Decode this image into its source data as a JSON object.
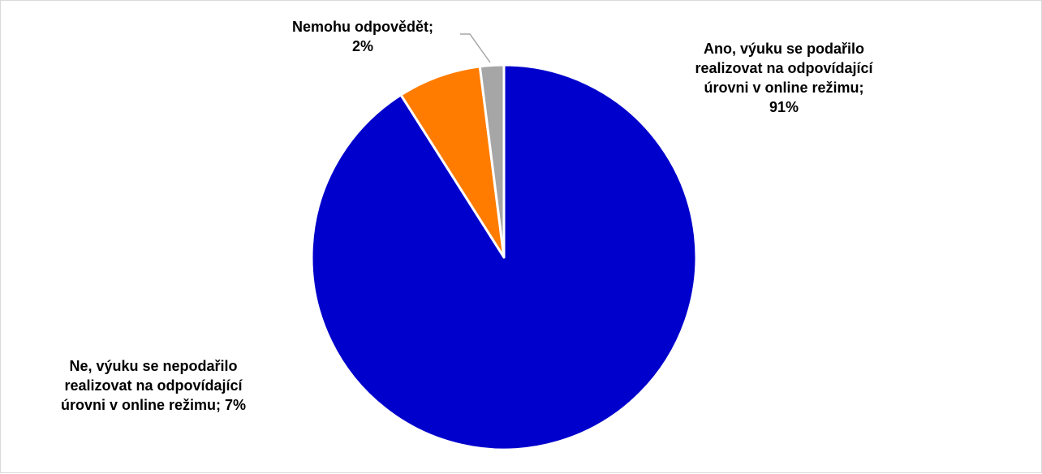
{
  "colors": {
    "ano": "#0000CC",
    "ne": "#FF7C00",
    "nemohu": "#A6A6A6",
    "slice_border": "#FFFFFF",
    "leader_line": "#A6A6A6"
  },
  "chart_data": {
    "type": "pie",
    "title": "",
    "start": "12 o'clock",
    "direction": "clockwise",
    "slices": [
      {
        "name": "Ano, výuku se podařilo realizovat na odpovídající úrovni v online režimu",
        "value": 91,
        "color": "#0000CC",
        "label_lines": [
          "Ano, výuku se podařilo",
          "realizovat na odpovídající",
          "úrovni v online režimu;",
          "91%"
        ]
      },
      {
        "name": "Ne, výuku se nepodařilo realizovat na odpovídající úrovni v online režimu",
        "value": 7,
        "color": "#FF7C00",
        "label_lines": [
          "Ne, výuku se nepodařilo",
          "realizovat na odpovídající",
          "úrovni v online režimu; 7%"
        ]
      },
      {
        "name": "Nemohu odpovědět",
        "value": 2,
        "color": "#A6A6A6",
        "label_lines": [
          "Nemohu odpovědět;",
          "2%"
        ]
      }
    ]
  }
}
